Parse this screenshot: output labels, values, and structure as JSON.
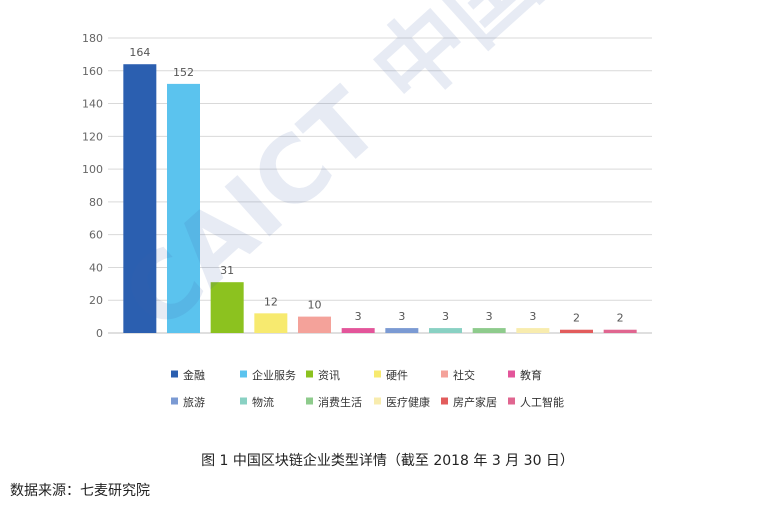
{
  "chart_data": {
    "type": "bar",
    "title": "",
    "xlabel": "",
    "ylabel": "",
    "ylim": [
      0,
      180
    ],
    "yticks": [
      0,
      20,
      40,
      60,
      80,
      100,
      120,
      140,
      160,
      180
    ],
    "grid": true,
    "legend_position": "bottom",
    "categories": [
      "金融",
      "企业服务",
      "资讯",
      "硬件",
      "社交",
      "教育",
      "旅游",
      "物流",
      "消费生活",
      "医疗健康",
      "房产家居",
      "人工智能"
    ],
    "values": [
      164,
      152,
      31,
      12,
      10,
      3,
      3,
      3,
      3,
      3,
      2,
      2
    ],
    "colors": [
      "#2b5fb0",
      "#5bc3ee",
      "#8cc21f",
      "#f7ea6f",
      "#f4a29a",
      "#e3559a",
      "#7b9ad3",
      "#89d1c3",
      "#8ecb8c",
      "#f8ecae",
      "#e25c5c",
      "#e06690"
    ]
  },
  "watermark": "CAICT 中国信通",
  "caption": "图 1 中国区块链企业类型详情（截至 2018 年 3 月 30 日）",
  "source": "数据来源：七麦研究院"
}
